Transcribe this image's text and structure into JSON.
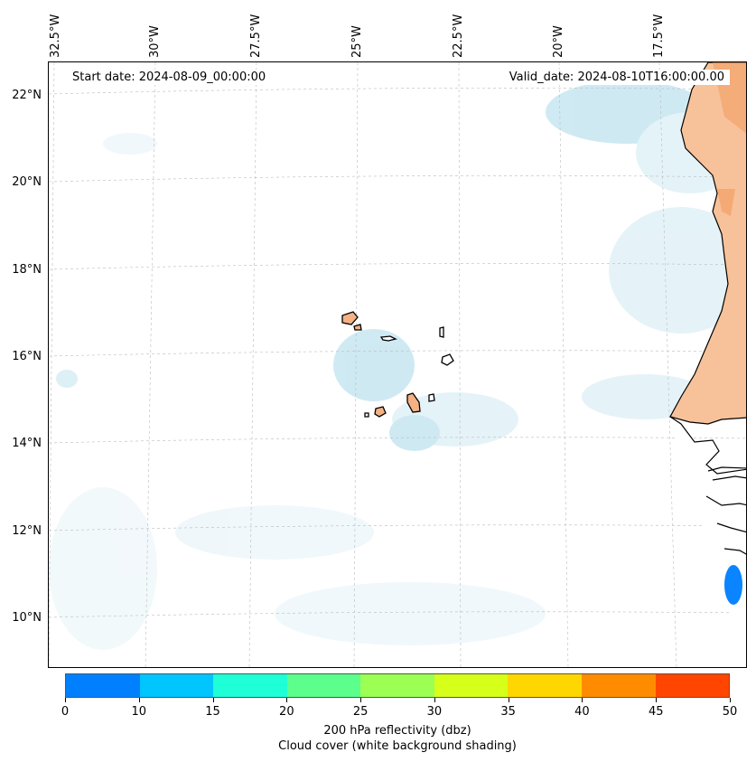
{
  "map": {
    "start_date": "Start date: 2024-08-09_00:00:00",
    "valid_date": "Valid_date: 2024-08-10T16:00:00.00",
    "longitude_labels": [
      "32.5°W",
      "30°W",
      "27.5°W",
      "25°W",
      "22.5°W",
      "20°W",
      "17.5°W"
    ],
    "latitude_labels": [
      "22°N",
      "20°N",
      "18°N",
      "16°N",
      "14°N",
      "12°N",
      "10°N"
    ],
    "land_color": "#f4b183",
    "cloud_color": "#bfe3ef",
    "precip_color": "#0a84ff"
  },
  "colorbar": {
    "ticks": [
      "0",
      "10",
      "15",
      "20",
      "25",
      "30",
      "35",
      "40",
      "45",
      "50"
    ],
    "colors": [
      "#0080ff",
      "#00c5ff",
      "#1effd7",
      "#5cff8c",
      "#9bff54",
      "#d6ff1a",
      "#ffd700",
      "#ff8c00",
      "#ff4500"
    ],
    "label": "200 hPa reflectivity (dbz)",
    "sublabel": "Cloud cover (white background shading)"
  }
}
